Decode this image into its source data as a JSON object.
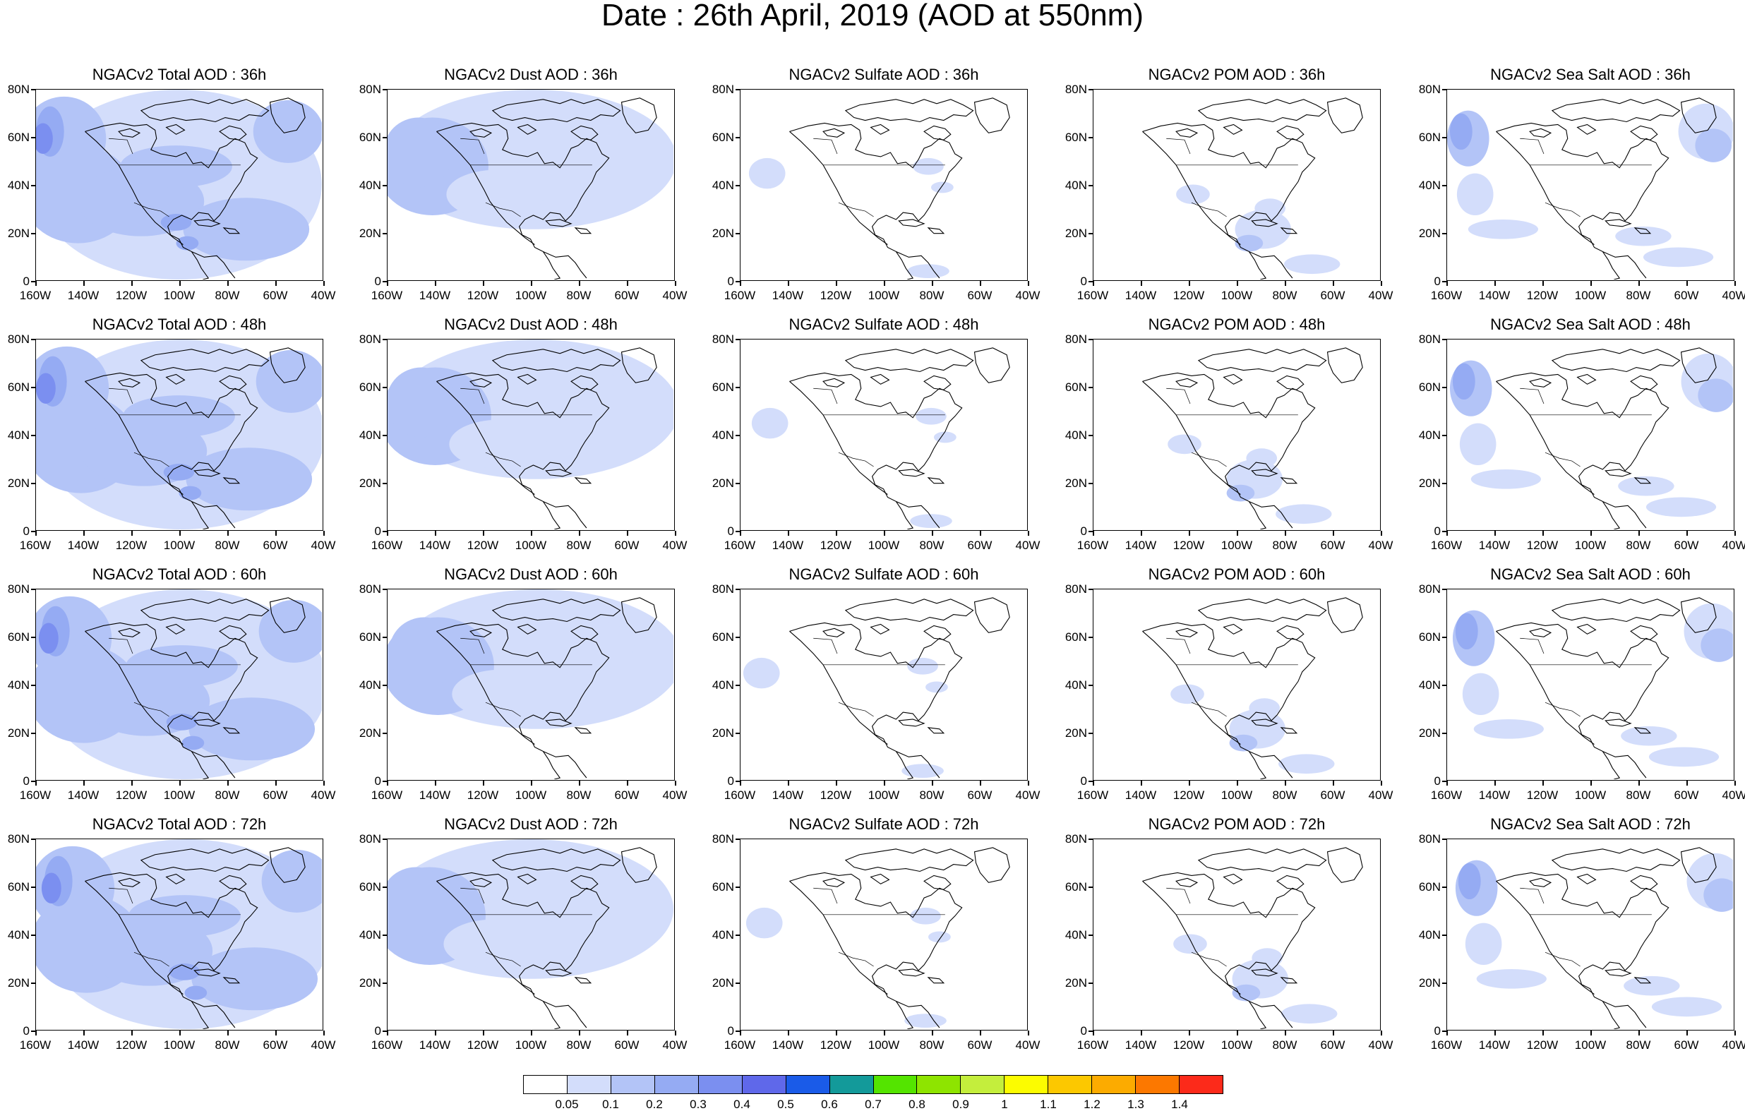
{
  "title": "Date : 26th April, 2019 (AOD at 550nm)",
  "lat_ticks": [
    "80N",
    "60N",
    "40N",
    "20N",
    "0"
  ],
  "lon_ticks": [
    "160W",
    "140W",
    "120W",
    "100W",
    "80W",
    "60W",
    "40W"
  ],
  "panels": [
    {
      "title": "NGACv2 Total AOD : 36h",
      "species": "total",
      "hour": "36h"
    },
    {
      "title": "NGACv2 Dust AOD : 36h",
      "species": "dust",
      "hour": "36h"
    },
    {
      "title": "NGACv2 Sulfate AOD : 36h",
      "species": "sulfate",
      "hour": "36h"
    },
    {
      "title": "NGACv2 POM AOD : 36h",
      "species": "pom",
      "hour": "36h"
    },
    {
      "title": "NGACv2 Sea Salt AOD : 36h",
      "species": "seasalt",
      "hour": "36h"
    },
    {
      "title": "NGACv2 Total AOD : 48h",
      "species": "total",
      "hour": "48h"
    },
    {
      "title": "NGACv2 Dust AOD : 48h",
      "species": "dust",
      "hour": "48h"
    },
    {
      "title": "NGACv2 Sulfate AOD : 48h",
      "species": "sulfate",
      "hour": "48h"
    },
    {
      "title": "NGACv2 POM AOD : 48h",
      "species": "pom",
      "hour": "48h"
    },
    {
      "title": "NGACv2 Sea Salt AOD : 48h",
      "species": "seasalt",
      "hour": "48h"
    },
    {
      "title": "NGACv2 Total AOD : 60h",
      "species": "total",
      "hour": "60h"
    },
    {
      "title": "NGACv2 Dust AOD : 60h",
      "species": "dust",
      "hour": "60h"
    },
    {
      "title": "NGACv2 Sulfate AOD : 60h",
      "species": "sulfate",
      "hour": "60h"
    },
    {
      "title": "NGACv2 POM AOD : 60h",
      "species": "pom",
      "hour": "60h"
    },
    {
      "title": "NGACv2 Sea Salt AOD : 60h",
      "species": "seasalt",
      "hour": "60h"
    },
    {
      "title": "NGACv2 Total AOD : 72h",
      "species": "total",
      "hour": "72h"
    },
    {
      "title": "NGACv2 Dust AOD : 72h",
      "species": "dust",
      "hour": "72h"
    },
    {
      "title": "NGACv2 Sulfate AOD : 72h",
      "species": "sulfate",
      "hour": "72h"
    },
    {
      "title": "NGACv2 POM AOD : 72h",
      "species": "pom",
      "hour": "72h"
    },
    {
      "title": "NGACv2 Sea Salt  AOD : 72h",
      "species": "seasalt",
      "hour": "72h"
    }
  ],
  "colorbar": {
    "colors": [
      "#ffffff",
      "#d3ddfb",
      "#b3c4f7",
      "#95abf3",
      "#7b8ff0",
      "#5f68ea",
      "#1a5be8",
      "#139a9a",
      "#54e400",
      "#8ee400",
      "#c4ee3c",
      "#fcfc00",
      "#fcc800",
      "#fcab00",
      "#fc7800",
      "#fc2a1a"
    ],
    "labels": [
      "0.05",
      "0.1",
      "0.2",
      "0.3",
      "0.4",
      "0.5",
      "0.6",
      "0.7",
      "0.8",
      "0.9",
      "1",
      "1.1",
      "1.2",
      "1.3",
      "1.4"
    ]
  }
}
